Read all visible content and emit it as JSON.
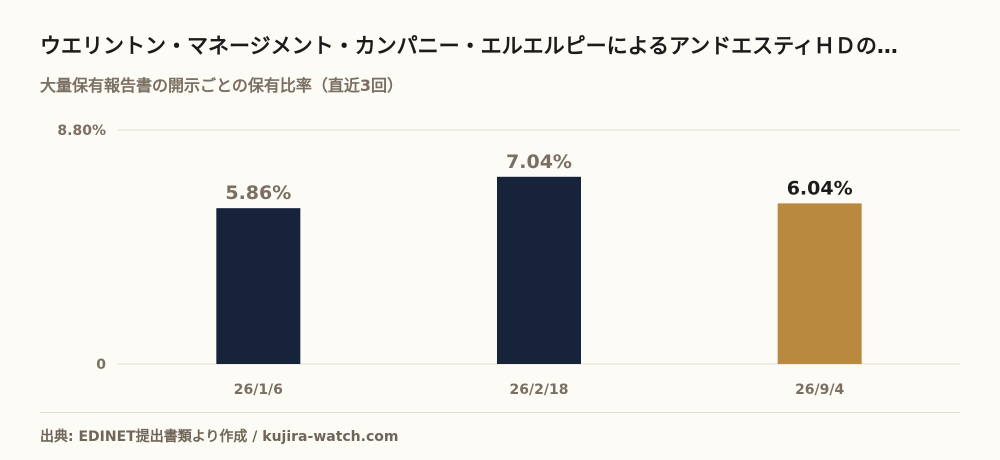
{
  "header": {
    "title": "ウエリントン・マネージメント・カンパニー・エルエルピーによるアンドエスティＨＤの…",
    "subtitle": "大量保有報告書の開示ごとの保有比率（直近3回）"
  },
  "footer": {
    "source": "出典: EDINET提出書類より作成 / kujira-watch.com"
  },
  "colors": {
    "past_bar": "#17223b",
    "latest_bar": "#b8893f",
    "past_label": "#7a6f62",
    "latest_label": "#1b1b1b",
    "grid": "#e3ddd0",
    "axis_text": "#7a6f62"
  },
  "chart_data": {
    "type": "bar",
    "title": "",
    "xlabel": "",
    "ylabel": "",
    "categories": [
      "26/1/6",
      "26/2/18",
      "26/9/4"
    ],
    "values": [
      5.86,
      7.04,
      6.04
    ],
    "value_labels": [
      "5.86%",
      "7.04%",
      "6.04%"
    ],
    "highlight_index": 2,
    "ylim": [
      0,
      8.8
    ],
    "y_ticks": [
      0,
      8.8
    ],
    "y_tick_labels": [
      "0",
      "8.80%"
    ],
    "grid": true,
    "legend": "none"
  }
}
